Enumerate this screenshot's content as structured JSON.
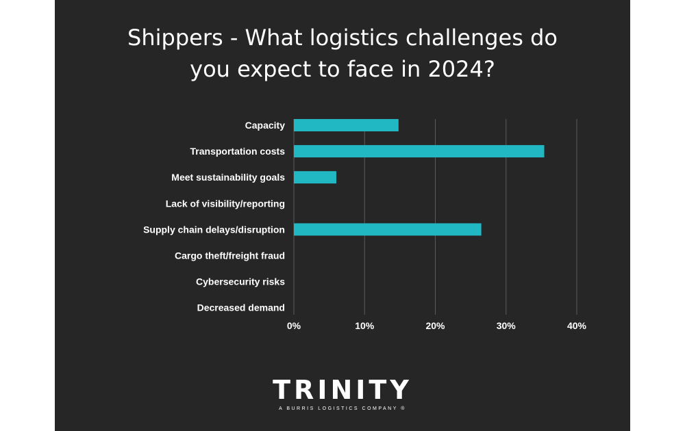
{
  "chart_data": {
    "type": "bar",
    "orientation": "horizontal",
    "title_lines": [
      "Shippers - What logistics challenges do",
      "you expect to face in 2024?"
    ],
    "categories": [
      "Capacity",
      "Transportation costs",
      "Meet sustainability goals",
      "Lack of visibility/reporting",
      "Supply chain delays/disruption",
      "Cargo theft/freight fraud",
      "Cybersecurity risks",
      "Decreased demand"
    ],
    "values": [
      14.8,
      35.4,
      6.0,
      0,
      26.5,
      0,
      0,
      0
    ],
    "unit": "%",
    "xlim": [
      0,
      40
    ],
    "xticks": [
      "0%",
      "10%",
      "20%",
      "30%",
      "40%"
    ],
    "grid": true,
    "bar_color": "#21b8c4"
  },
  "branding": {
    "logo_text": "TRINITY",
    "tagline": "A BURRIS LOGISTICS COMPANY ®"
  }
}
